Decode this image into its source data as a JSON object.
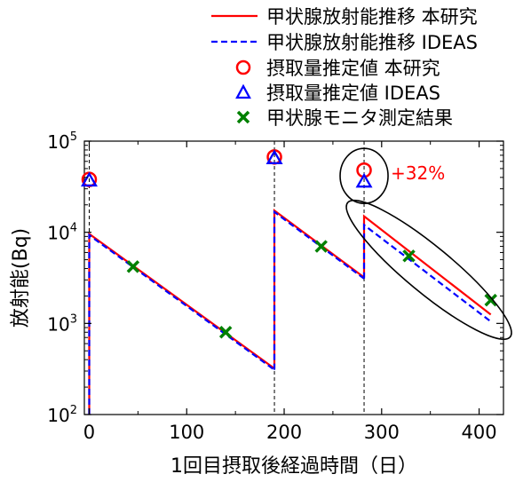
{
  "chart_data": {
    "type": "line",
    "xlabel": "1回目摂取後経過時間（日）",
    "ylabel": "放射能(Bq)",
    "xlim": [
      -5,
      425
    ],
    "ylim": [
      100,
      100000
    ],
    "y_scale": "log",
    "x_ticks": [
      0,
      100,
      200,
      300,
      400
    ],
    "x_tick_labels": [
      "0",
      "100",
      "200",
      "300",
      "400"
    ],
    "y_ticks": [
      100,
      1000,
      10000,
      100000
    ],
    "y_tick_labels": [
      {
        "base": "10",
        "exp": "2"
      },
      {
        "base": "10",
        "exp": "3"
      },
      {
        "base": "10",
        "exp": "4"
      },
      {
        "base": "10",
        "exp": "5"
      }
    ],
    "legend": {
      "placement": "top-right",
      "entries": [
        {
          "label": "甲状腺放射能推移 本研究",
          "marker": "solid-line",
          "color": "#ff0000"
        },
        {
          "label": "甲状腺放射能推移 IDEAS",
          "marker": "dashed-line",
          "color": "#0000ff"
        },
        {
          "label": "摂取量推定値 本研究",
          "marker": "circle",
          "color": "#ff0000"
        },
        {
          "label": "摂取量推定値 IDEAS",
          "marker": "triangle",
          "color": "#0000ff"
        },
        {
          "label": "甲状腺モニタ測定結果",
          "marker": "x",
          "color": "#008000"
        }
      ]
    },
    "intake_days": [
      0,
      190,
      282
    ],
    "series": [
      {
        "name": "甲状腺放射能推移 本研究",
        "color": "#ff0000",
        "style": "solid",
        "segments": [
          {
            "x": [
              0,
              0,
              190
            ],
            "y": [
              100,
              9600,
              320
            ]
          },
          {
            "x": [
              190,
              190,
              282
            ],
            "y": [
              320,
              17300,
              3200
            ]
          },
          {
            "x": [
              282,
              282,
              412
            ],
            "y": [
              3200,
              15000,
              1250
            ]
          }
        ]
      },
      {
        "name": "甲状腺放射能推移 IDEAS",
        "color": "#0000ff",
        "style": "dashed",
        "segments": [
          {
            "x": [
              0,
              0,
              190
            ],
            "y": [
              100,
              9300,
              310
            ]
          },
          {
            "x": [
              190,
              190,
              282
            ],
            "y": [
              310,
              16700,
              3100
            ]
          },
          {
            "x": [
              282,
              282,
              412
            ],
            "y": [
              3100,
              12000,
              1050
            ]
          }
        ]
      }
    ],
    "intake_estimates": {
      "this_study": {
        "x": [
          0,
          190,
          282
        ],
        "y": [
          38000,
          67000,
          48000
        ],
        "color": "#ff0000"
      },
      "ideas": {
        "x": [
          0,
          190,
          282
        ],
        "y": [
          37000,
          65000,
          36000
        ],
        "color": "#0000ff"
      }
    },
    "measurements": {
      "x": [
        45,
        140,
        238,
        328,
        412
      ],
      "y": [
        4200,
        800,
        7000,
        5500,
        1800
      ],
      "color": "#008000"
    },
    "annotations": [
      {
        "text": "+32%",
        "color": "#ff0000"
      }
    ],
    "highlight_ellipses": 2
  }
}
